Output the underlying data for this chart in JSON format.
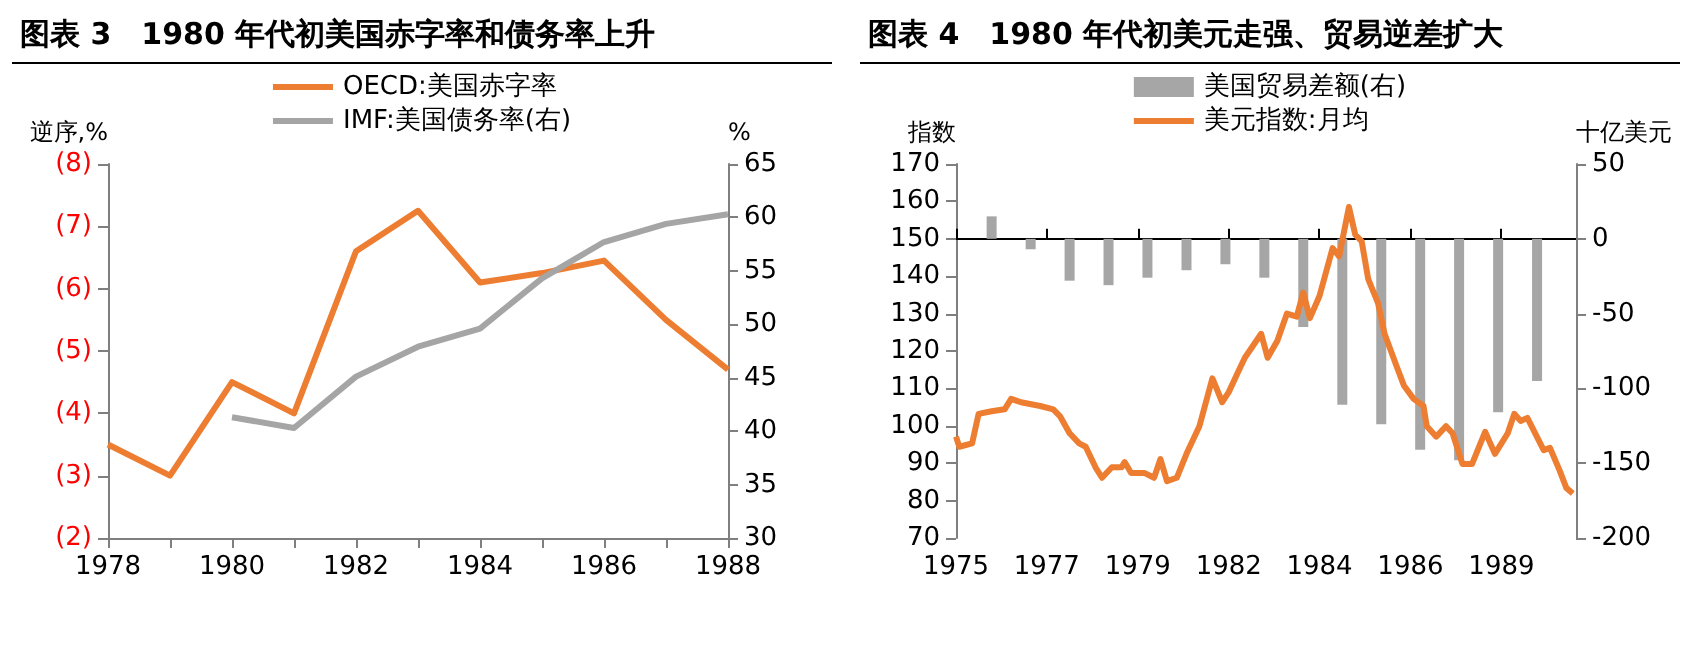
{
  "chart_data": [
    {
      "type": "line",
      "title": "图表 3　1980 年代初美国赤字率和债务率上升",
      "ylabel": "逆序,%",
      "y2label": "%",
      "legend": "top",
      "marker": "none",
      "x": [
        1978,
        1979,
        1980,
        1981,
        1982,
        1983,
        1984,
        1985,
        1986,
        1987,
        1988
      ],
      "xlim": [
        1978,
        1988
      ],
      "xticks": [
        1978,
        {
          "value": 1979,
          "label": null
        },
        1980,
        {
          "value": 1981,
          "label": null
        },
        1982,
        {
          "value": 1983,
          "label": null
        },
        1984,
        {
          "value": 1985,
          "label": null
        },
        1986,
        {
          "value": 1987,
          "label": null
        },
        1988
      ],
      "ylim": [
        -2,
        -8
      ],
      "yticks": [
        {
          "value": -8,
          "label": "(8)"
        },
        {
          "value": -7,
          "label": "(7)"
        },
        {
          "value": -6,
          "label": "(6)"
        },
        {
          "value": -5,
          "label": "(5)"
        },
        {
          "value": -4,
          "label": "(4)"
        },
        {
          "value": -3,
          "label": "(3)"
        },
        {
          "value": -2,
          "label": "(2)"
        }
      ],
      "y2lim": [
        30,
        65
      ],
      "y2ticks": [
        30,
        35,
        40,
        45,
        50,
        55,
        60,
        65
      ],
      "series": [
        {
          "name": "OECD:美国赤字率",
          "color": "#ed7d31",
          "values": [
            -3.5,
            -3.0,
            -4.5,
            -4.0,
            -6.6,
            -7.25,
            -6.1,
            -6.25,
            -6.45,
            -5.5,
            -4.7
          ]
        },
        {
          "name": "IMF:美国债务率(右)",
          "color": "#a5a5a5",
          "axis": "y2",
          "x": [
            1980,
            1981,
            1982,
            1983,
            1984,
            1985,
            1986,
            1987,
            1988
          ],
          "values": [
            41.3,
            40.3,
            45.1,
            47.9,
            49.6,
            54.3,
            57.7,
            59.4,
            60.3
          ]
        }
      ]
    },
    {
      "type": "line",
      "title": "图表 4　1980 年代初美元走强、贸易逆差扩大",
      "ylabel": "指数",
      "y2label": "十亿美元",
      "legend": "top",
      "marker": "none",
      "xlim": [
        "1975-01",
        "1990-12"
      ],
      "xticks": [
        {
          "value": "1975-01",
          "label": "1975"
        },
        {
          "value": "1977-05",
          "label": "1977"
        },
        {
          "value": "1979-09",
          "label": "1979"
        },
        {
          "value": "1982-01",
          "label": "1982"
        },
        {
          "value": "1984-05",
          "label": "1984"
        },
        {
          "value": "1986-09",
          "label": "1986"
        },
        {
          "value": "1989-01",
          "label": "1989"
        }
      ],
      "ylim": [
        70,
        170
      ],
      "yticks": [
        70,
        80,
        90,
        100,
        110,
        120,
        130,
        140,
        150,
        160,
        170
      ],
      "y2lim": [
        -200,
        50
      ],
      "y2ticks": [
        -200,
        -150,
        -100,
        -50,
        0,
        50
      ],
      "series": [
        {
          "name": "美国贸易差额(右)",
          "type": "bar",
          "color": "#a6a6a6",
          "axis": "y2",
          "x": [
            "1975-12",
            "1976-12",
            "1977-12",
            "1978-12",
            "1979-12",
            "1980-12",
            "1981-12",
            "1982-12",
            "1983-12",
            "1984-12",
            "1985-12",
            "1986-12",
            "1987-12",
            "1988-12",
            "1989-12"
          ],
          "values": [
            15,
            -7,
            -28,
            -31,
            -26,
            -21,
            -17,
            -26,
            -59,
            -111,
            -124,
            -141,
            -148,
            -116,
            -95
          ]
        },
        {
          "name": "美元指数:月均",
          "color": "#ed7d31",
          "x": [
            "1975-01",
            "1975-02",
            "1975-06",
            "1975-08",
            "1975-12",
            "1976-04",
            "1976-06",
            "1976-09",
            "1977-03",
            "1977-07",
            "1977-09",
            "1977-12",
            "1978-03",
            "1978-05",
            "1978-08",
            "1978-10",
            "1979-01",
            "1979-04",
            "1979-05",
            "1979-07",
            "1979-11",
            "1980-02",
            "1980-04",
            "1980-06",
            "1980-09",
            "1980-12",
            "1981-04",
            "1981-08",
            "1981-11",
            "1982-01",
            "1982-04",
            "1982-06",
            "1982-11",
            "1983-01",
            "1983-04",
            "1983-07",
            "1983-10",
            "1983-12",
            "1984-02",
            "1984-05",
            "1984-09",
            "1984-11",
            "1985-02",
            "1985-04",
            "1985-06",
            "1985-08",
            "1985-11",
            "1986-01",
            "1986-05",
            "1986-07",
            "1986-10",
            "1987-01",
            "1987-02",
            "1987-05",
            "1987-08",
            "1987-10",
            "1988-01",
            "1988-04",
            "1988-08",
            "1988-11",
            "1989-01",
            "1989-03",
            "1989-05",
            "1989-07",
            "1989-09",
            "1990-02",
            "1990-04",
            "1990-07",
            "1990-09",
            "1990-11"
          ],
          "values": [
            97.1,
            94.4,
            95.3,
            103.2,
            103.9,
            104.4,
            107.2,
            106.3,
            105.3,
            104.4,
            102.6,
            98,
            95.3,
            94.4,
            88.9,
            86.1,
            88.9,
            88.9,
            90.3,
            87.4,
            87.4,
            86.1,
            91.1,
            85.2,
            86.1,
            92.5,
            99.9,
            112.7,
            106.3,
            109,
            114.5,
            118.2,
            124.6,
            118.2,
            122.7,
            130,
            129.2,
            135.6,
            128.8,
            134.7,
            147.5,
            145.3,
            158.5,
            151.1,
            149.3,
            139.2,
            132.8,
            124.6,
            115.4,
            110.8,
            107.2,
            105.3,
            99.9,
            97.1,
            99.9,
            98,
            89.8,
            89.8,
            98.4,
            92.5,
            95.3,
            98,
            103.2,
            101.3,
            102.1,
            93.5,
            94.1,
            88,
            83.4,
            81.9
          ]
        }
      ]
    }
  ]
}
